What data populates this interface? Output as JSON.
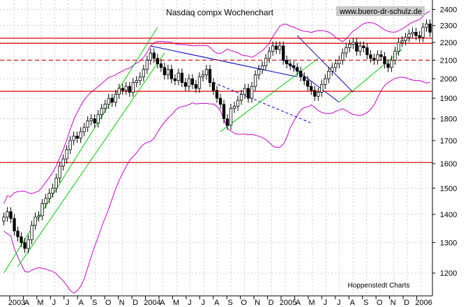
{
  "chart_data": {
    "type": "candlestick",
    "title": "Nasdaq compx Wochenchart",
    "watermark": "www.buero-dr-schulz.de",
    "source": "Hoppenstedt Charts",
    "ylim": [
      1130,
      2460
    ],
    "yticks": [
      1200,
      1300,
      1400,
      1500,
      1600,
      1700,
      1800,
      1900,
      2000,
      2100,
      2200,
      2300,
      2400
    ],
    "x_labels": [
      "2003",
      "A",
      "M",
      "J",
      "J",
      "A",
      "S",
      "O",
      "N",
      "D",
      "2004",
      "A",
      "M",
      "J",
      "J",
      "A",
      "S",
      "O",
      "N",
      "D",
      "2005",
      "A",
      "M",
      "J",
      "J",
      "A",
      "S",
      "O",
      "N",
      "D",
      "2006"
    ],
    "grid": true,
    "horizontal_lines": [
      {
        "value": 2195,
        "style": "solid",
        "color": "#dd0000"
      },
      {
        "value": 2225,
        "style": "solid",
        "color": "#dd0000"
      },
      {
        "value": 2100,
        "style": "dashed",
        "color": "#dd0000"
      },
      {
        "value": 1935,
        "style": "solid",
        "color": "#dd0000"
      },
      {
        "value": 1605,
        "style": "solid",
        "color": "#dd0000"
      }
    ],
    "colors": {
      "up": "#ffffff",
      "down": "#000000",
      "band": "#cc00cc",
      "channel_green": "#00cc00",
      "channel_blue": "#0000cc",
      "hline": "#dd0000",
      "grid": "#bbbbbb"
    },
    "weekly_close": [
      1390,
      1410,
      1385,
      1340,
      1320,
      1300,
      1280,
      1310,
      1360,
      1390,
      1395,
      1440,
      1460,
      1480,
      1500,
      1540,
      1590,
      1620,
      1660,
      1700,
      1720,
      1710,
      1740,
      1760,
      1790,
      1800,
      1780,
      1820,
      1850,
      1870,
      1900,
      1880,
      1920,
      1950,
      1940,
      1960,
      1930,
      1980,
      1990,
      2010,
      2050,
      2100,
      2140,
      2110,
      2080,
      2060,
      2020,
      2050,
      2000,
      1990,
      2030,
      1980,
      1960,
      2000,
      1970,
      1950,
      2010,
      2020,
      2050,
      1980,
      1940,
      1900,
      1870,
      1800,
      1770,
      1850,
      1860,
      1890,
      1920,
      1950,
      1900,
      1960,
      2020,
      2050,
      2070,
      2110,
      2150,
      2180,
      2160,
      2180,
      2100,
      2080,
      2070,
      2060,
      2040,
      2010,
      1990,
      1960,
      1940,
      1910,
      1930,
      1970,
      2000,
      2040,
      2060,
      2080,
      2100,
      2140,
      2170,
      2190,
      2200,
      2150,
      2180,
      2170,
      2130,
      2110,
      2100,
      2130,
      2120,
      2080,
      2060,
      2100,
      2150,
      2200,
      2210,
      2230,
      2250,
      2260,
      2240,
      2230,
      2290,
      2310,
      2260
    ]
  }
}
